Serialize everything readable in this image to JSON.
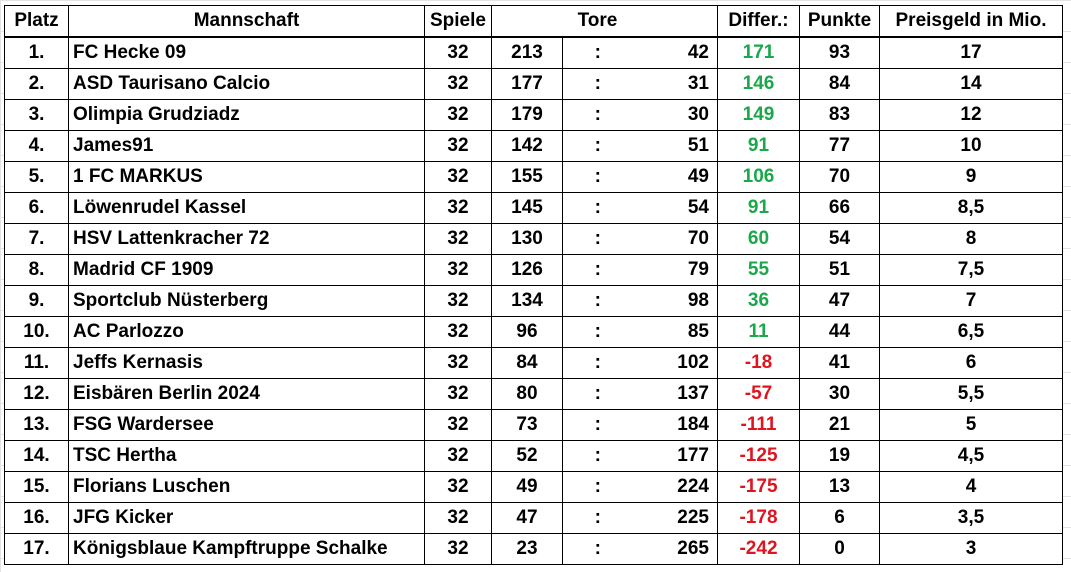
{
  "colors": {
    "positive": "#1aa84a",
    "negative": "#e0141e",
    "text": "#000000"
  },
  "header": {
    "platz": "Platz",
    "mannschaft": "Mannschaft",
    "spiele": "Spiele",
    "tore": "Tore",
    "differenz": "Differ.:",
    "punkte": "Punkte",
    "preisgeld": "Preisgeld in Mio."
  },
  "rows": [
    {
      "platz": "1.",
      "team": "FC Hecke 09",
      "spiele": "32",
      "tore_plus": "213",
      "sep": ":",
      "tore_minus": "42",
      "diff": "171",
      "punkte": "93",
      "preisgeld": "17"
    },
    {
      "platz": "2.",
      "team": "ASD Taurisano Calcio",
      "spiele": "32",
      "tore_plus": "177",
      "sep": ":",
      "tore_minus": "31",
      "diff": "146",
      "punkte": "84",
      "preisgeld": "14"
    },
    {
      "platz": "3.",
      "team": "Olimpia Grudziadz",
      "spiele": "32",
      "tore_plus": "179",
      "sep": ":",
      "tore_minus": "30",
      "diff": "149",
      "punkte": "83",
      "preisgeld": "12"
    },
    {
      "platz": "4.",
      "team": "James91",
      "spiele": "32",
      "tore_plus": "142",
      "sep": ":",
      "tore_minus": "51",
      "diff": "91",
      "punkte": "77",
      "preisgeld": "10"
    },
    {
      "platz": "5.",
      "team": "1 FC MARKUS",
      "spiele": "32",
      "tore_plus": "155",
      "sep": ":",
      "tore_minus": "49",
      "diff": "106",
      "punkte": "70",
      "preisgeld": "9"
    },
    {
      "platz": "6.",
      "team": "Löwenrudel Kassel",
      "spiele": "32",
      "tore_plus": "145",
      "sep": ":",
      "tore_minus": "54",
      "diff": "91",
      "punkte": "66",
      "preisgeld": "8,5"
    },
    {
      "platz": "7.",
      "team": "HSV Lattenkracher 72",
      "spiele": "32",
      "tore_plus": "130",
      "sep": ":",
      "tore_minus": "70",
      "diff": "60",
      "punkte": "54",
      "preisgeld": "8"
    },
    {
      "platz": "8.",
      "team": "Madrid CF 1909",
      "spiele": "32",
      "tore_plus": "126",
      "sep": ":",
      "tore_minus": "79",
      "diff": "55",
      "punkte": "51",
      "preisgeld": "7,5"
    },
    {
      "platz": "9.",
      "team": "Sportclub Nüsterberg",
      "spiele": "32",
      "tore_plus": "134",
      "sep": ":",
      "tore_minus": "98",
      "diff": "36",
      "punkte": "47",
      "preisgeld": "7"
    },
    {
      "platz": "10.",
      "team": "AC Parlozzo",
      "spiele": "32",
      "tore_plus": "96",
      "sep": ":",
      "tore_minus": "85",
      "diff": "11",
      "punkte": "44",
      "preisgeld": "6,5"
    },
    {
      "platz": "11.",
      "team": "Jeffs Kernasis",
      "spiele": "32",
      "tore_plus": "84",
      "sep": ":",
      "tore_minus": "102",
      "diff": "-18",
      "punkte": "41",
      "preisgeld": "6"
    },
    {
      "platz": "12.",
      "team": "Eisbären Berlin 2024",
      "spiele": "32",
      "tore_plus": "80",
      "sep": ":",
      "tore_minus": "137",
      "diff": "-57",
      "punkte": "30",
      "preisgeld": "5,5"
    },
    {
      "platz": "13.",
      "team": "FSG Wardersee",
      "spiele": "32",
      "tore_plus": "73",
      "sep": ":",
      "tore_minus": "184",
      "diff": "-111",
      "punkte": "21",
      "preisgeld": "5"
    },
    {
      "platz": "14.",
      "team": "TSC Hertha",
      "spiele": "32",
      "tore_plus": "52",
      "sep": ":",
      "tore_minus": "177",
      "diff": "-125",
      "punkte": "19",
      "preisgeld": "4,5"
    },
    {
      "platz": "15.",
      "team": "Florians Luschen",
      "spiele": "32",
      "tore_plus": "49",
      "sep": ":",
      "tore_minus": "224",
      "diff": "-175",
      "punkte": "13",
      "preisgeld": "4"
    },
    {
      "platz": "16.",
      "team": "JFG Kicker",
      "spiele": "32",
      "tore_plus": "47",
      "sep": ":",
      "tore_minus": "225",
      "diff": "-178",
      "punkte": "6",
      "preisgeld": "3,5"
    },
    {
      "platz": "17.",
      "team": "Königsblaue Kampftruppe Schalke",
      "spiele": "32",
      "tore_plus": "23",
      "sep": ":",
      "tore_minus": "265",
      "diff": "-242",
      "punkte": "0",
      "preisgeld": "3"
    }
  ]
}
